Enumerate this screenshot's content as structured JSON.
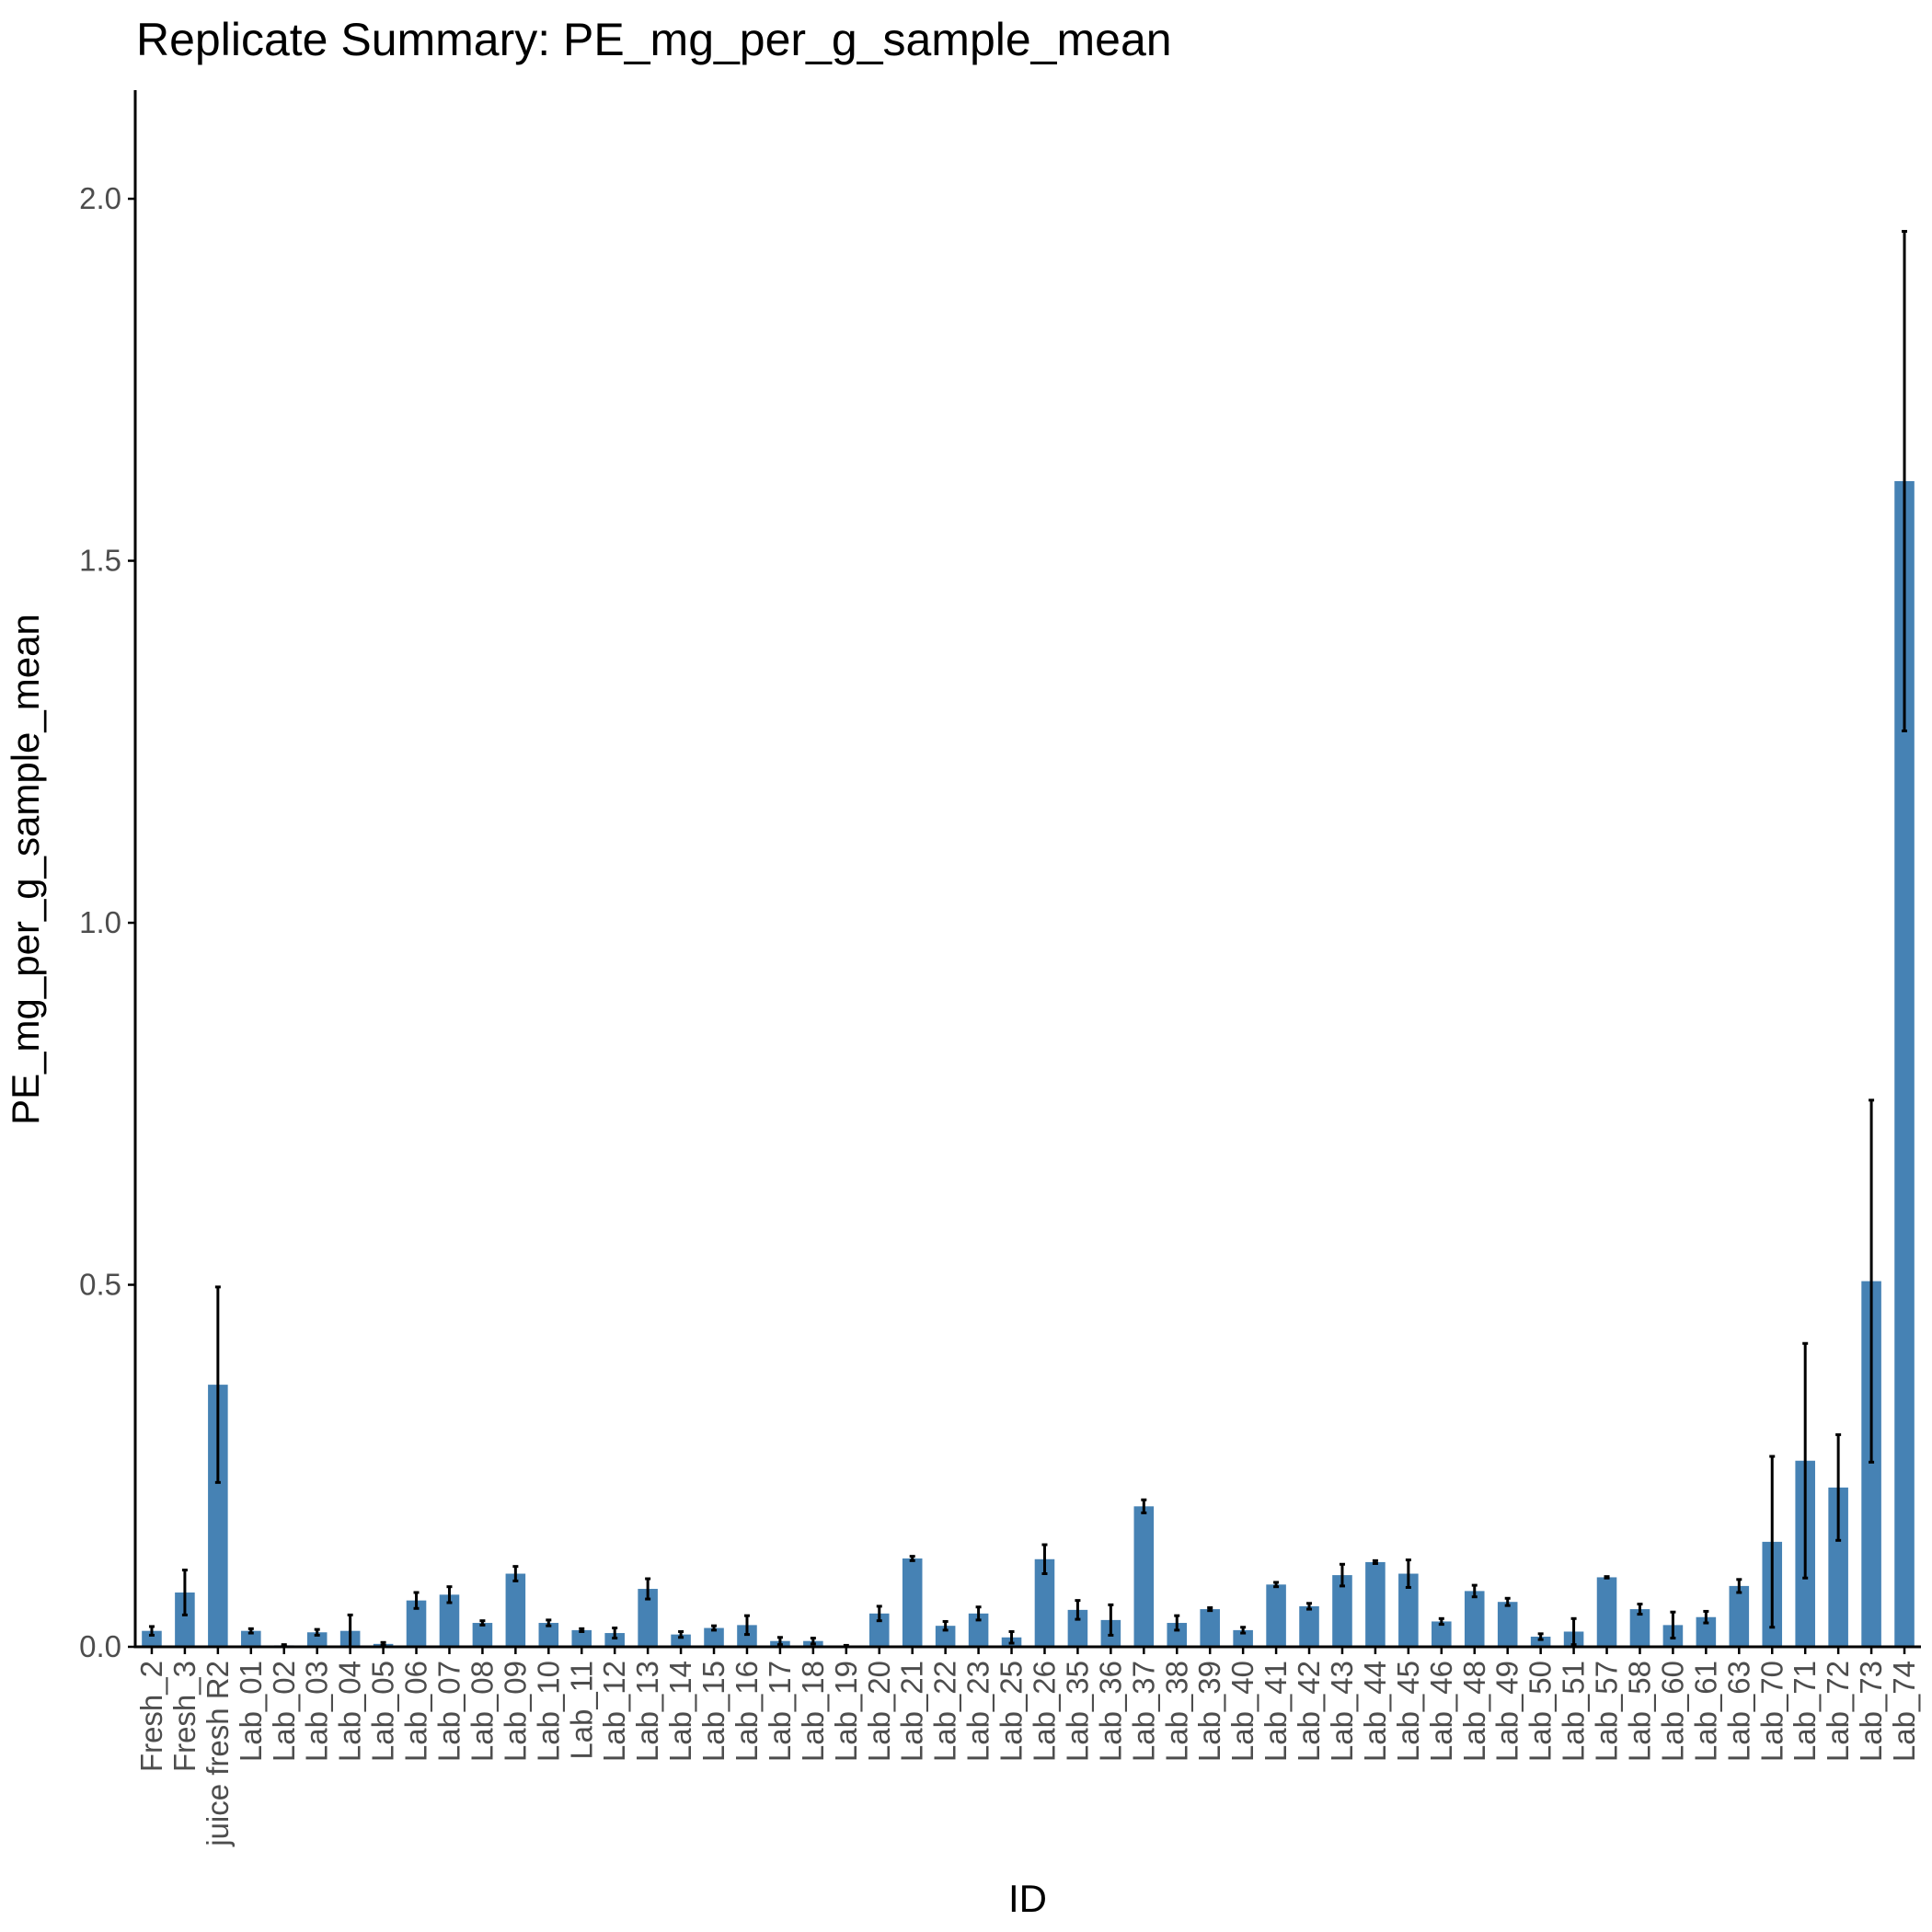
{
  "chart_data": {
    "type": "bar",
    "title": "Replicate Summary: PE_mg_per_g_sample_mean",
    "xlabel": "ID",
    "ylabel": "PE_mg_per_g_sample_mean",
    "ylim": [
      0,
      2.15
    ],
    "yticks": [
      0.0,
      0.5,
      1.0,
      1.5,
      2.0
    ],
    "ytick_labels": [
      "0.0",
      "0.5",
      "1.0",
      "1.5",
      "2.0"
    ],
    "grid": false,
    "legend": "none",
    "bar_color": "#4682b4",
    "error_bar_color": "#000000",
    "categories": [
      "Fresh_2",
      "Fresh_3",
      "juice fresh R2",
      "Lab_01",
      "Lab_02",
      "Lab_03",
      "Lab_04",
      "Lab_05",
      "Lab_06",
      "Lab_07",
      "Lab_08",
      "Lab_09",
      "Lab_10",
      "Lab_11",
      "Lab_12",
      "Lab_13",
      "Lab_14",
      "Lab_15",
      "Lab_16",
      "Lab_17",
      "Lab_18",
      "Lab_19",
      "Lab_20",
      "Lab_21",
      "Lab_22",
      "Lab_23",
      "Lab_25",
      "Lab_26",
      "Lab_35",
      "Lab_36",
      "Lab_37",
      "Lab_38",
      "Lab_39",
      "Lab_40",
      "Lab_41",
      "Lab_42",
      "Lab_43",
      "Lab_44",
      "Lab_45",
      "Lab_46",
      "Lab_48",
      "Lab_49",
      "Lab_50",
      "Lab_51",
      "Lab_57",
      "Lab_58",
      "Lab_60",
      "Lab_61",
      "Lab_63",
      "Lab_70",
      "Lab_71",
      "Lab_72",
      "Lab_73",
      "Lab_74"
    ],
    "values": [
      0.022,
      0.075,
      0.362,
      0.022,
      0.002,
      0.02,
      0.022,
      0.004,
      0.064,
      0.072,
      0.033,
      0.101,
      0.033,
      0.023,
      0.019,
      0.08,
      0.017,
      0.026,
      0.03,
      0.008,
      0.008,
      0.001,
      0.046,
      0.122,
      0.029,
      0.046,
      0.013,
      0.121,
      0.051,
      0.037,
      0.194,
      0.033,
      0.052,
      0.023,
      0.086,
      0.056,
      0.099,
      0.117,
      0.101,
      0.035,
      0.077,
      0.062,
      0.014,
      0.021,
      0.096,
      0.052,
      0.03,
      0.041,
      0.084,
      0.145,
      0.257,
      0.22,
      0.505,
      1.61
    ],
    "errors": [
      0.006,
      0.031,
      0.135,
      0.003,
      0.001,
      0.004,
      0.022,
      0.002,
      0.011,
      0.011,
      0.003,
      0.01,
      0.004,
      0.002,
      0.007,
      0.014,
      0.004,
      0.003,
      0.013,
      0.005,
      0.004,
      0.001,
      0.01,
      0.003,
      0.006,
      0.009,
      0.008,
      0.02,
      0.013,
      0.021,
      0.009,
      0.01,
      0.002,
      0.004,
      0.003,
      0.004,
      0.015,
      0.002,
      0.019,
      0.004,
      0.008,
      0.005,
      0.004,
      0.018,
      0.001,
      0.007,
      0.018,
      0.008,
      0.009,
      0.118,
      0.162,
      0.073,
      0.25,
      0.345
    ]
  }
}
